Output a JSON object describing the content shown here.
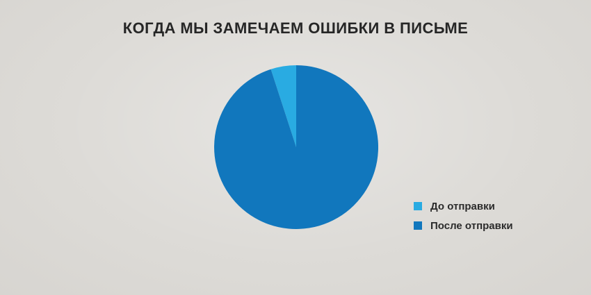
{
  "colors": {
    "background": "#dddbd7",
    "title_text": "#262626",
    "legend_text": "#2b2b2b"
  },
  "chart_data": {
    "type": "pie",
    "title": "КОГДА МЫ ЗАМЕЧАЕМ ОШИБКИ В ПИСЬМЕ",
    "slices": [
      {
        "label": "До отправки",
        "value": 5,
        "color": "#29abe2"
      },
      {
        "label": "После отправки",
        "value": 95,
        "color": "#1177bd"
      }
    ],
    "units": "percent",
    "start_angle": "top",
    "direction": "counterclockwise",
    "legend_position": "right",
    "grid": false
  }
}
